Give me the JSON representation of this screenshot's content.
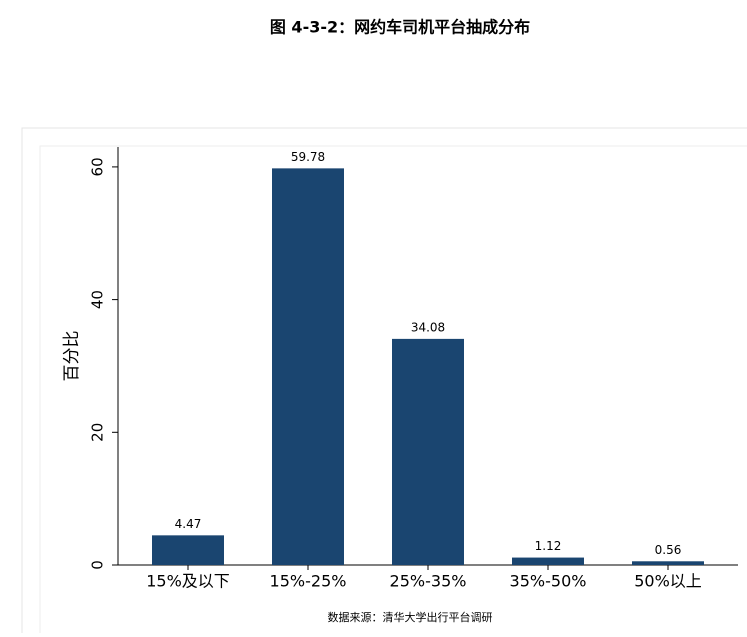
{
  "chart_data": {
    "type": "bar",
    "title": "图 4-3-2：网约车司机平台抽成分布",
    "y_label": "百分比",
    "categories": [
      "15%及以下",
      "15%-25%",
      "25%-35%",
      "35%-50%",
      "50%以上"
    ],
    "values": [
      4.47,
      59.78,
      34.08,
      1.12,
      0.56
    ],
    "color": "#1a4570",
    "ylim": [
      0,
      63
    ],
    "yticks": [
      0,
      20,
      40,
      60
    ],
    "source": "数据来源：清华大学出行平台调研"
  }
}
